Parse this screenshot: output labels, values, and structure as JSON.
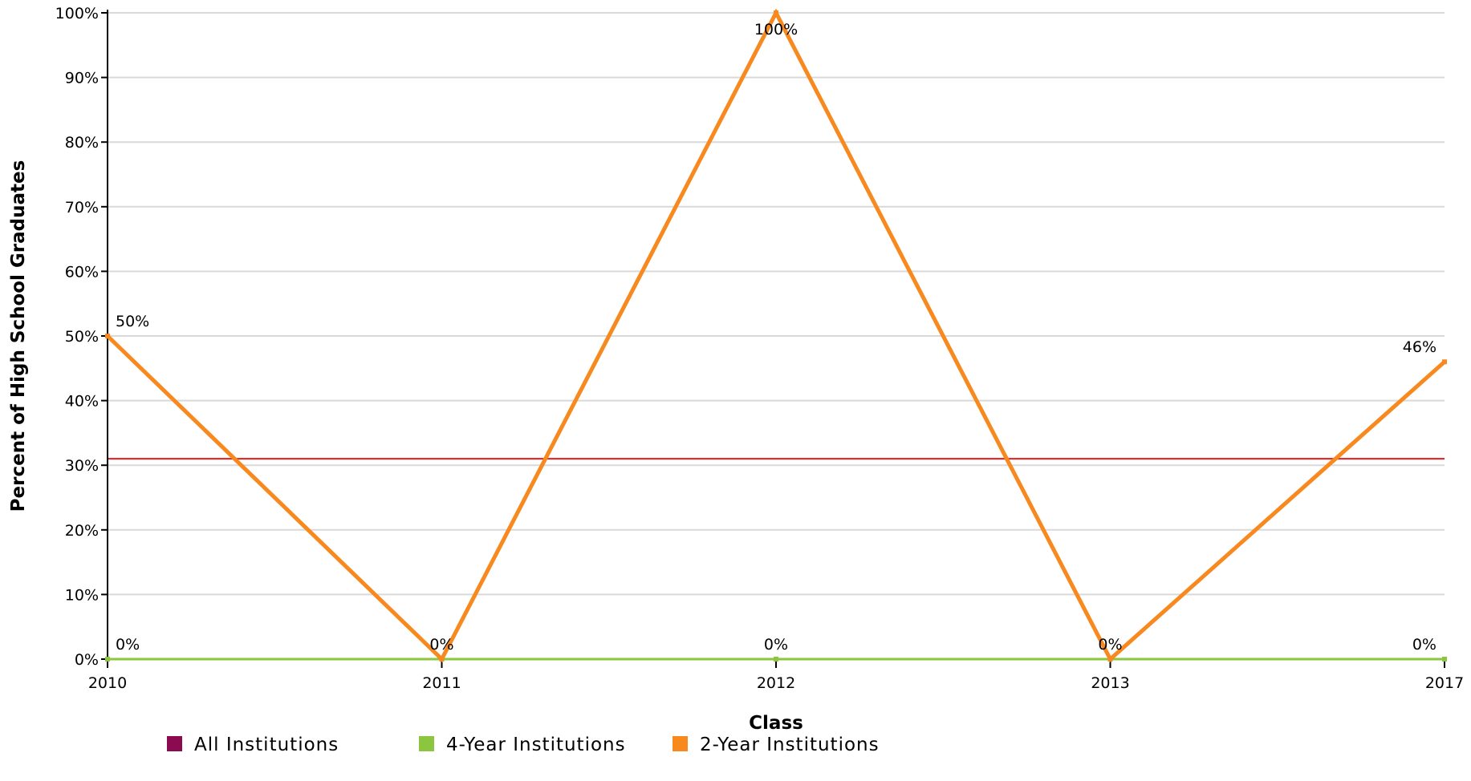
{
  "chart_data": {
    "type": "line",
    "categories": [
      "2010",
      "2011",
      "2012",
      "2013",
      "2017"
    ],
    "xlabel": "Class",
    "ylabel": "Percent of High School Graduates",
    "ylim": [
      0,
      100
    ],
    "y_ticks": [
      "0%",
      "10%",
      "20%",
      "30%",
      "40%",
      "50%",
      "60%",
      "70%",
      "80%",
      "90%",
      "100%"
    ],
    "grid": true,
    "legend_position": "bottom-left",
    "reference_line": {
      "value": 31,
      "color": "#e8191b"
    },
    "series": [
      {
        "name": "All Institutions",
        "color": "#8b0a50",
        "values": [
          0,
          0,
          0,
          0,
          0
        ],
        "labels": [
          null,
          null,
          null,
          null,
          null
        ]
      },
      {
        "name": "4-Year Institutions",
        "color": "#8cc63f",
        "values": [
          0,
          0,
          0,
          0,
          0
        ],
        "labels": [
          "0%",
          "0%",
          "0%",
          "0%",
          "0%"
        ]
      },
      {
        "name": "2-Year Institutions",
        "color": "#f7891f",
        "values": [
          50,
          0,
          100,
          0,
          46
        ],
        "labels": [
          "50%",
          null,
          "100%",
          null,
          "46%"
        ]
      }
    ]
  }
}
